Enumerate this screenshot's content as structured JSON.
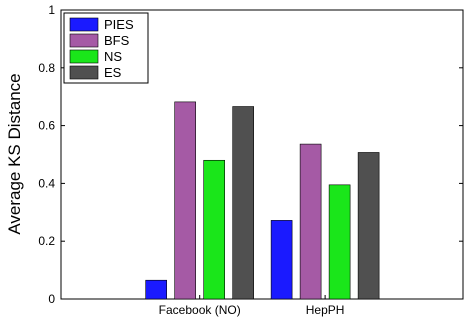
{
  "chart_data": {
    "type": "bar",
    "title": "",
    "xlabel": "",
    "ylabel": "Average KS Distance",
    "ylim": [
      0,
      1
    ],
    "yticks": [
      0,
      0.2,
      0.4,
      0.6,
      0.8,
      1
    ],
    "ytick_labels": [
      "0",
      "0.2",
      "0.4",
      "0.6",
      "0.8",
      "1"
    ],
    "categories": [
      "Facebook (NO)",
      "HepPH"
    ],
    "series": [
      {
        "name": "PIES",
        "color": "#1a1aff",
        "values": [
          0.065,
          0.272
        ]
      },
      {
        "name": "BFS",
        "color": "#a55aa5",
        "values": [
          0.682,
          0.536
        ]
      },
      {
        "name": "NS",
        "color": "#1ae61a",
        "values": [
          0.48,
          0.395
        ]
      },
      {
        "name": "ES",
        "color": "#505050",
        "values": [
          0.666,
          0.507
        ]
      }
    ],
    "legend": "top-left",
    "grid": false
  }
}
